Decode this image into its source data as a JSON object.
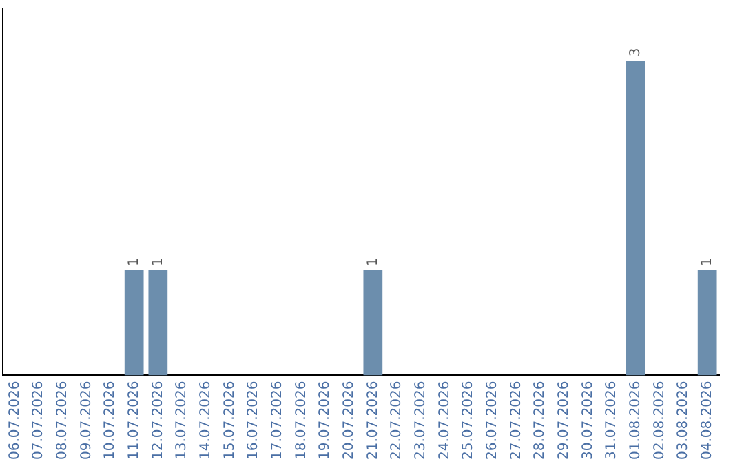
{
  "chart_data": {
    "type": "bar",
    "categories": [
      "06.07.2026",
      "07.07.2026",
      "08.07.2026",
      "09.07.2026",
      "10.07.2026",
      "11.07.2026",
      "12.07.2026",
      "13.07.2026",
      "14.07.2026",
      "15.07.2026",
      "16.07.2026",
      "17.07.2026",
      "18.07.2026",
      "19.07.2026",
      "20.07.2026",
      "21.07.2026",
      "22.07.2026",
      "23.07.2026",
      "24.07.2026",
      "25.07.2026",
      "26.07.2026",
      "27.07.2026",
      "28.07.2026",
      "29.07.2026",
      "30.07.2026",
      "31.07.2026",
      "01.08.2026",
      "02.08.2026",
      "03.08.2026",
      "04.08.2026"
    ],
    "values": [
      0,
      0,
      0,
      0,
      0,
      1,
      1,
      0,
      0,
      0,
      0,
      0,
      0,
      0,
      0,
      1,
      0,
      0,
      0,
      0,
      0,
      0,
      0,
      0,
      0,
      0,
      3,
      0,
      0,
      1
    ],
    "value_labels": [
      null,
      null,
      null,
      null,
      null,
      "1",
      "1",
      null,
      null,
      null,
      null,
      null,
      null,
      null,
      null,
      "1",
      null,
      null,
      null,
      null,
      null,
      null,
      null,
      null,
      null,
      null,
      "3",
      null,
      null,
      "1"
    ],
    "color": "#6c8ead",
    "grid": false,
    "legend": false
  }
}
